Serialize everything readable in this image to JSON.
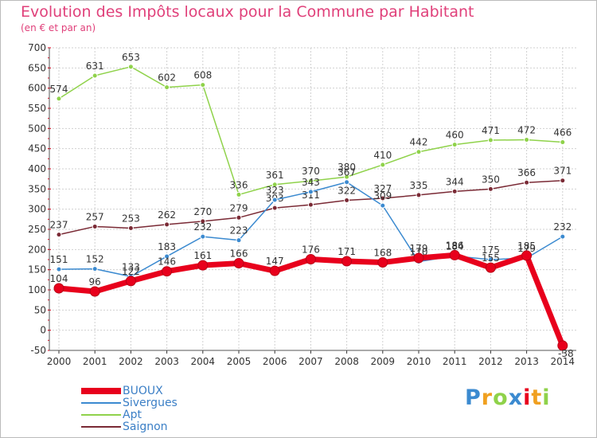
{
  "chart_data": {
    "type": "line",
    "title": "Evolution des Impôts locaux pour la Commune par Habitant",
    "subtitle": "(en € et par an)",
    "x": [
      "2000",
      "2001",
      "2002",
      "2003",
      "2004",
      "2005",
      "2006",
      "2007",
      "2008",
      "2009",
      "2010",
      "2011",
      "2012",
      "2013",
      "2014"
    ],
    "ylim": [
      -50,
      700
    ],
    "yticks": [
      -50,
      0,
      50,
      100,
      150,
      200,
      250,
      300,
      350,
      400,
      450,
      500,
      550,
      600,
      650,
      700
    ],
    "grid": true,
    "legend": "bottom-left",
    "series": [
      {
        "name": "Saignon",
        "color": "#7a2a35",
        "values": [
          237,
          257,
          253,
          262,
          270,
          279,
          303,
          311,
          322,
          327,
          335,
          344,
          350,
          366,
          371
        ],
        "labels": [
          "237",
          "257",
          "253",
          "262",
          "270",
          "279",
          "303",
          "311",
          "322",
          "327",
          "335",
          "344",
          "350",
          "366",
          "371"
        ]
      },
      {
        "name": "Apt",
        "color": "#8fd24a",
        "values": [
          574,
          631,
          653,
          602,
          608,
          336,
          361,
          370,
          380,
          410,
          442,
          460,
          471,
          472,
          466
        ],
        "labels": [
          "574",
          "631",
          "653",
          "602",
          "608",
          "336",
          "361",
          "370",
          "380",
          "410",
          "442",
          "460",
          "471",
          "472",
          "466"
        ]
      },
      {
        "name": "Sivergues",
        "color": "#3b8ad0",
        "values": [
          151,
          152,
          133,
          183,
          232,
          223,
          323,
          343,
          367,
          309,
          170,
          184,
          175,
          179,
          232
        ],
        "labels": [
          "151",
          "152",
          "133",
          "183",
          "232",
          "223",
          "323",
          "343",
          "367",
          "309",
          "170",
          "184",
          "175",
          "179",
          "232"
        ]
      },
      {
        "name": "BUOUX",
        "color": "#e8001c",
        "values": [
          104,
          96,
          122,
          146,
          161,
          166,
          147,
          176,
          171,
          168,
          179,
          186,
          155,
          185,
          -38
        ],
        "labels": [
          "104",
          "96",
          "122",
          "146",
          "161",
          "166",
          "147",
          "176",
          "171",
          "168",
          "179",
          "186",
          "155",
          "185",
          "-38"
        ]
      }
    ],
    "legend_order": [
      "BUOUX",
      "Sivergues",
      "Apt",
      "Saignon"
    ]
  },
  "logo": {
    "text": "Proxiti",
    "letters": [
      "P",
      "r",
      "o",
      "x",
      "i",
      "t",
      "i"
    ],
    "colors": [
      "#3b8ad0",
      "#f0a020",
      "#8fd24a",
      "#3b8ad0",
      "#e8001c",
      "#f0a020",
      "#8fd24a"
    ]
  }
}
